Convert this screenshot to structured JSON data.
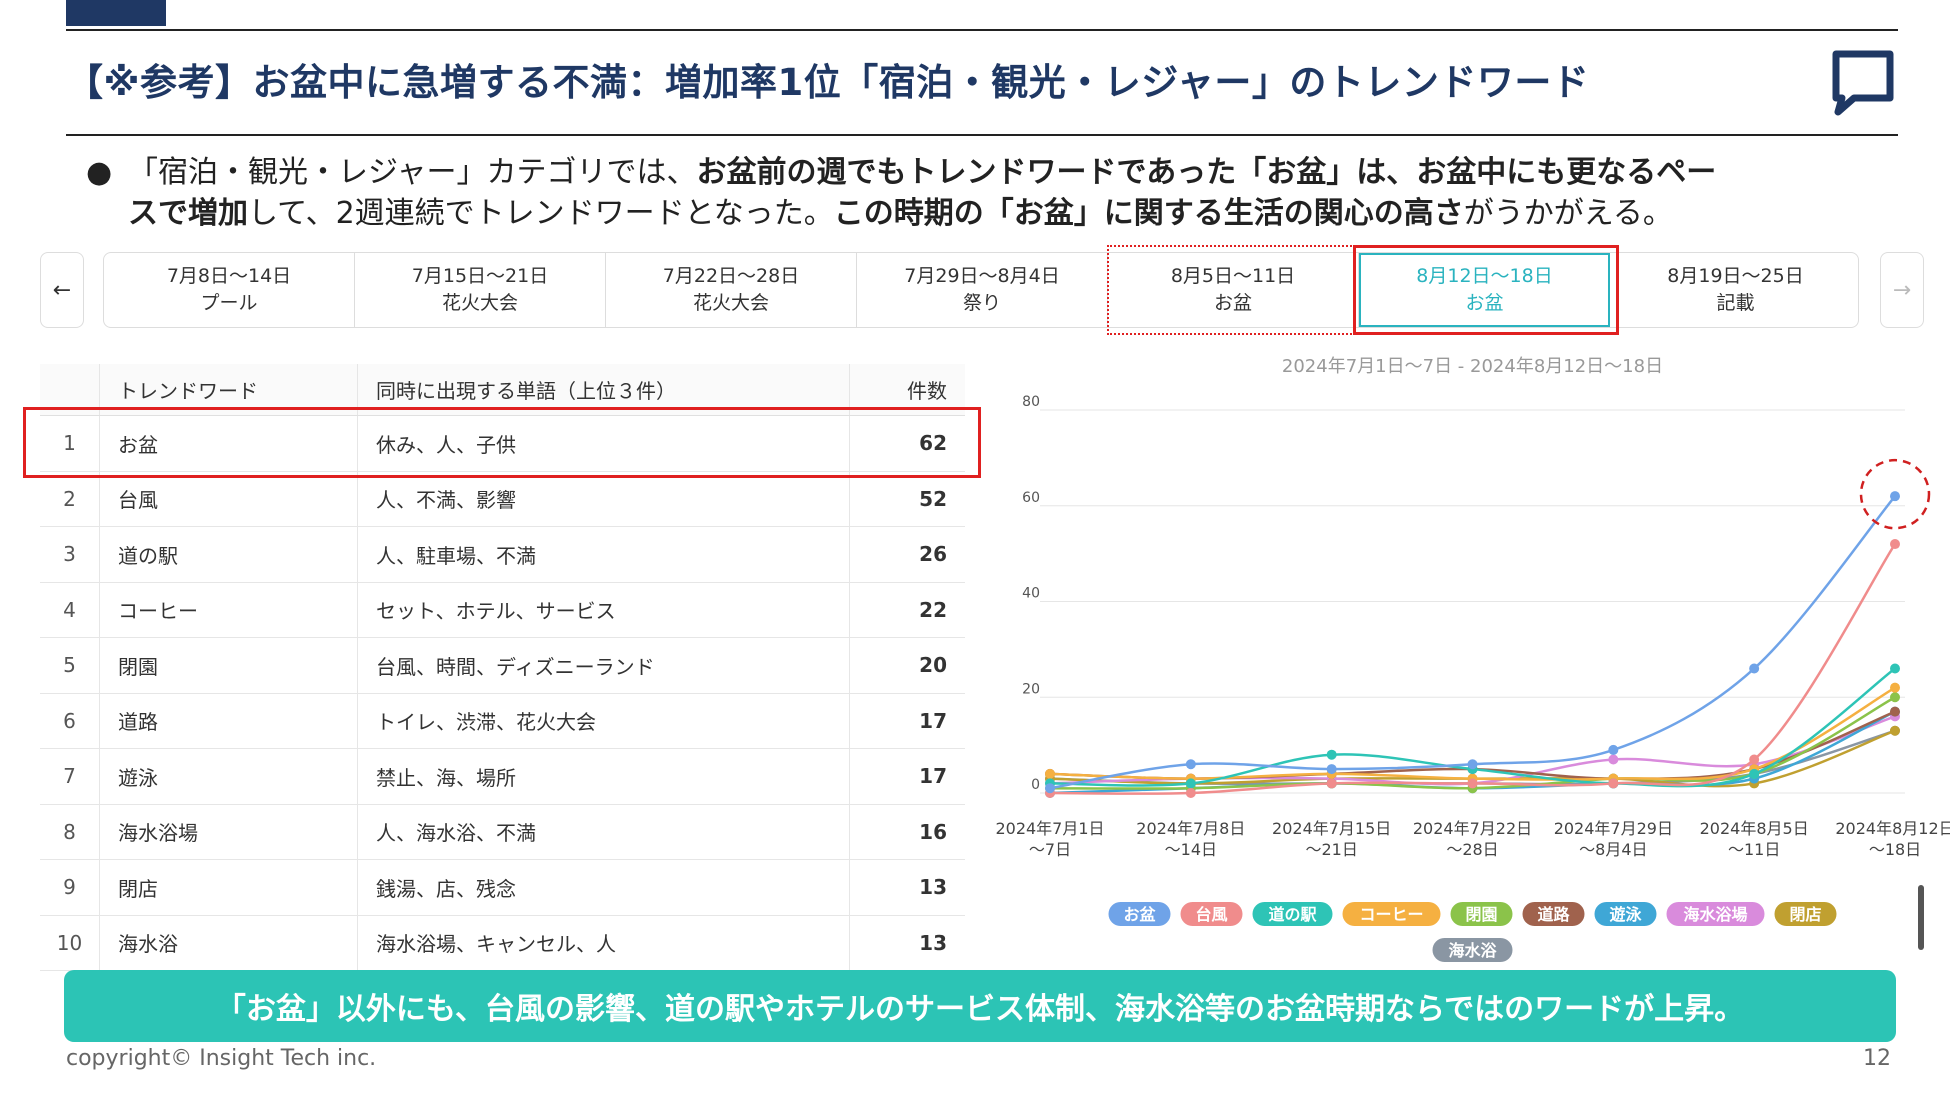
{
  "slide": {
    "title": "【※参考】お盆中に急増する不満：増加率1位「宿泊・観光・レジャー」のトレンドワード",
    "bullet_dot": "●",
    "bullet_line1_a": "「宿泊・観光・レジャー」カテゴリでは、",
    "bullet_line1_b": "お盆前の週でもトレンドワードであった「お盆」は、お盆中にも更なるペー",
    "bullet_line2_a": "スで増加",
    "bullet_line2_b": "して、2週連続でトレンドワードとなった。",
    "bullet_line2_c": "この時期の「お盆」に関する生活の関心の高さ",
    "bullet_line2_d": "がうかがえる。",
    "banner": "「お盆」以外にも、台風の影響、道の駅やホテルのサービス体制、海水浴等のお盆時期ならではのワードが上昇。",
    "copyright": "copyright© Insight Tech inc.",
    "page_number": "12"
  },
  "nav": {
    "prev_icon": "←",
    "next_icon": "→"
  },
  "weeks": [
    {
      "date": "7月8日～14日",
      "word": "プール"
    },
    {
      "date": "7月15日～21日",
      "word": "花火大会"
    },
    {
      "date": "7月22日～28日",
      "word": "花火大会"
    },
    {
      "date": "7月29日～8月4日",
      "word": "祭り"
    },
    {
      "date": "8月5日～11日",
      "word": "お盆"
    },
    {
      "date": "8月12日～18日",
      "word": "お盆"
    },
    {
      "date": "8月19日～25日",
      "word": "記載"
    }
  ],
  "selected_week_index": 5,
  "table": {
    "headers": {
      "rank": "",
      "word": "トレンドワード",
      "co": "同時に出現する単語（上位３件）",
      "count": "件数"
    },
    "rows": [
      {
        "rank": "1",
        "word": "お盆",
        "co": "休み、人、子供",
        "count": "62"
      },
      {
        "rank": "2",
        "word": "台風",
        "co": "人、不満、影響",
        "count": "52"
      },
      {
        "rank": "3",
        "word": "道の駅",
        "co": "人、駐車場、不満",
        "count": "26"
      },
      {
        "rank": "4",
        "word": "コーヒー",
        "co": "セット、ホテル、サービス",
        "count": "22"
      },
      {
        "rank": "5",
        "word": "閉園",
        "co": "台風、時間、ディズニーランド",
        "count": "20"
      },
      {
        "rank": "6",
        "word": "道路",
        "co": "トイレ、渋滞、花火大会",
        "count": "17"
      },
      {
        "rank": "7",
        "word": "遊泳",
        "co": "禁止、海、場所",
        "count": "17"
      },
      {
        "rank": "8",
        "word": "海水浴場",
        "co": "人、海水浴、不満",
        "count": "16"
      },
      {
        "rank": "9",
        "word": "閉店",
        "co": "銭湯、店、残念",
        "count": "13"
      },
      {
        "rank": "10",
        "word": "海水浴",
        "co": "海水浴場、キャンセル、人",
        "count": "13"
      }
    ]
  },
  "chart_data": {
    "type": "line",
    "title": "2024年7月1日～7日 - 2024年8月12日～18日",
    "categories": [
      "2024年7月1日\n～7日",
      "2024年7月8日\n～14日",
      "2024年7月15日\n～21日",
      "2024年7月22日\n～28日",
      "2024年7月29日\n～8月4日",
      "2024年8月5日\n～11日",
      "2024年8月12日\n～18日"
    ],
    "ylim": [
      0,
      80
    ],
    "yticks": [
      0,
      20,
      40,
      60,
      80
    ],
    "grid": true,
    "legend_position": "bottom",
    "series": [
      {
        "name": "お盆",
        "color": "#6fa3e8",
        "values": [
          1,
          6,
          5,
          6,
          9,
          26,
          62
        ]
      },
      {
        "name": "台風",
        "color": "#f08c8c",
        "values": [
          0,
          0,
          2,
          2,
          2,
          7,
          52
        ]
      },
      {
        "name": "道の駅",
        "color": "#2ec4b6",
        "values": [
          2,
          2,
          8,
          5,
          2,
          4,
          26
        ]
      },
      {
        "name": "コーヒー",
        "color": "#f5b041",
        "values": [
          4,
          3,
          4,
          3,
          3,
          5,
          22
        ]
      },
      {
        "name": "閉園",
        "color": "#8bc34a",
        "values": [
          1,
          1,
          2,
          1,
          3,
          4,
          20
        ]
      },
      {
        "name": "道路",
        "color": "#a0624d",
        "values": [
          4,
          3,
          4,
          5,
          3,
          5,
          17
        ]
      },
      {
        "name": "遊泳",
        "color": "#3fa7d6",
        "values": [
          0,
          1,
          2,
          1,
          2,
          3,
          17
        ]
      },
      {
        "name": "海水浴場",
        "color": "#d98bdc",
        "values": [
          2,
          3,
          3,
          2,
          7,
          6,
          16
        ]
      },
      {
        "name": "閉店",
        "color": "#c0a030",
        "values": [
          3,
          2,
          3,
          3,
          3,
          2,
          13
        ]
      },
      {
        "name": "海水浴",
        "color": "#8a96a3",
        "values": [
          3,
          2,
          2,
          2,
          2,
          4,
          13
        ]
      }
    ]
  }
}
